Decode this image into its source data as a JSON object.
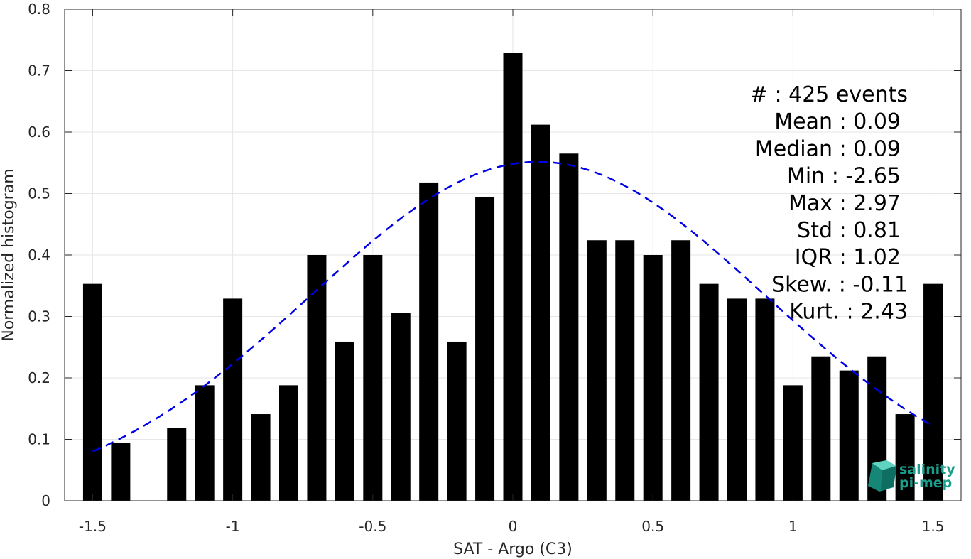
{
  "chart_data": {
    "type": "bar",
    "xlabel": "SAT - Argo (C3)",
    "ylabel": "Normalized histogram",
    "xlim": [
      -1.6,
      1.6
    ],
    "ylim": [
      0,
      0.8
    ],
    "x_ticks": [
      -1.5,
      -1,
      -0.5,
      0,
      0.5,
      1,
      1.5
    ],
    "x_tick_labels": [
      "-1.5",
      "-1",
      "-0.5",
      "0",
      "0.5",
      "1",
      "1.5"
    ],
    "y_ticks": [
      0,
      0.1,
      0.2,
      0.3,
      0.4,
      0.5,
      0.6,
      0.7,
      0.8
    ],
    "y_tick_labels": [
      "0",
      "0.1",
      "0.2",
      "0.3",
      "0.4",
      "0.5",
      "0.6",
      "0.7",
      "0.8"
    ],
    "grid": true,
    "bar_color": "#000000",
    "bins": [
      -1.5,
      -1.4,
      -1.3,
      -1.2,
      -1.1,
      -1.0,
      -0.9,
      -0.8,
      -0.7,
      -0.6,
      -0.5,
      -0.4,
      -0.3,
      -0.2,
      -0.1,
      0.0,
      0.1,
      0.2,
      0.3,
      0.4,
      0.5,
      0.6,
      0.7,
      0.8,
      0.9,
      1.0,
      1.1,
      1.2,
      1.3,
      1.4,
      1.5
    ],
    "values": [
      0.353,
      0.094,
      0.0,
      0.118,
      0.188,
      0.329,
      0.141,
      0.188,
      0.4,
      0.259,
      0.4,
      0.306,
      0.518,
      0.259,
      0.494,
      0.729,
      0.612,
      0.565,
      0.424,
      0.424,
      0.4,
      0.424,
      0.353,
      0.329,
      0.329,
      0.188,
      0.235,
      0.212,
      0.235,
      0.141,
      0.353
    ],
    "fit_curve": {
      "style": "dashed",
      "color": "#0000e6",
      "mean": 0.09,
      "std": 0.81,
      "x_range": [
        -1.5,
        1.5
      ]
    },
    "stats": [
      {
        "label": "#  : 425 events"
      },
      {
        "label": "Mean : 0.09"
      },
      {
        "label": "Median : 0.09"
      },
      {
        "label": "Min : -2.65"
      },
      {
        "label": "Max : 2.97"
      },
      {
        "label": "Std : 0.81"
      },
      {
        "label": "IQR : 1.02"
      },
      {
        "label": "Skew. : -0.11"
      },
      {
        "label": "Kurt. : 2.43"
      }
    ]
  },
  "logo": {
    "line1": "salinity",
    "line2": "pi-mep",
    "color": "#1a9e8c"
  }
}
